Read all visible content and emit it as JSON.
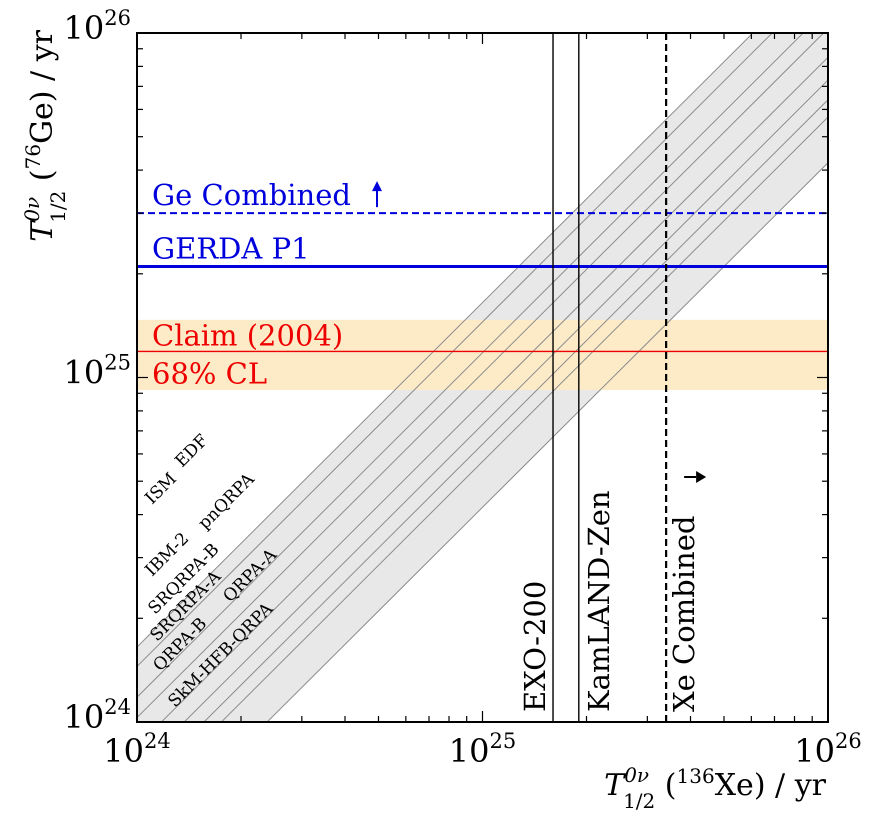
{
  "chart_data": {
    "type": "line",
    "x_axis": {
      "label_main": "T",
      "label_sup": "0ν",
      "label_sub": "1/2",
      "label_iso_open": " (",
      "label_iso_mass": "136",
      "label_iso_elem": "Xe) / yr",
      "scale": "log",
      "range": [
        1e+24,
        1e+26
      ],
      "ticks": [
        {
          "value": 1e+24,
          "base": "10",
          "exp": "24"
        },
        {
          "value": 1e+25,
          "base": "10",
          "exp": "25"
        },
        {
          "value": 1e+26,
          "base": "10",
          "exp": "26"
        }
      ]
    },
    "y_axis": {
      "label_main": "T",
      "label_sup": "0ν",
      "label_sub": "1/2",
      "label_iso_open": " (",
      "label_iso_mass": "76",
      "label_iso_elem": "Ge) / yr",
      "scale": "log",
      "range": [
        1e+24,
        1e+26
      ],
      "ticks": [
        {
          "value": 1e+24,
          "base": "10",
          "exp": "24"
        },
        {
          "value": 1e+25,
          "base": "10",
          "exp": "25"
        },
        {
          "value": 1e+26,
          "base": "10",
          "exp": "26"
        }
      ]
    },
    "model_band": {
      "color": "#e8e8e8",
      "ratio_range": [
        1.65,
        0.42
      ]
    },
    "model_lines": [
      {
        "name": "ISM",
        "ratio": 1.65
      },
      {
        "name": "EDF",
        "ratio": 1.45
      },
      {
        "name": "IBM-2",
        "ratio": 1.18
      },
      {
        "name": "pnQRPA",
        "ratio": 1.03
      },
      {
        "name": "SRQRPA-B",
        "ratio": 0.85
      },
      {
        "name": "SRQRPA-A",
        "ratio": 0.73
      },
      {
        "name": "QRPA-B",
        "ratio": 0.64
      },
      {
        "name": "QRPA-A",
        "ratio": 0.57
      },
      {
        "name": "SkM-HFB-QRPA",
        "ratio": 0.42
      }
    ],
    "horizontal_limits": [
      {
        "name": "Ge Combined",
        "value": 3e+25,
        "color": "#0000dd",
        "style": "dashed",
        "arrow": "up"
      },
      {
        "name": "GERDA P1",
        "value": 2.1e+25,
        "color": "#0000dd",
        "style": "solid"
      }
    ],
    "claim": {
      "name": "Claim (2004)",
      "band_label": "68% CL",
      "value": 1.19e+25,
      "band": [
        9.2e+24,
        1.47e+25
      ],
      "line_color": "#ee0000",
      "band_color": "#fdebc8"
    },
    "vertical_limits": [
      {
        "name": "EXO-200",
        "value": 1.6e+25,
        "color": "#000000",
        "style": "solid"
      },
      {
        "name": "KamLAND-Zen",
        "value": 1.9e+25,
        "color": "#000000",
        "style": "solid"
      },
      {
        "name": "Xe Combined",
        "value": 3.4e+25,
        "color": "#000000",
        "style": "dashed",
        "arrow": "down"
      }
    ]
  }
}
